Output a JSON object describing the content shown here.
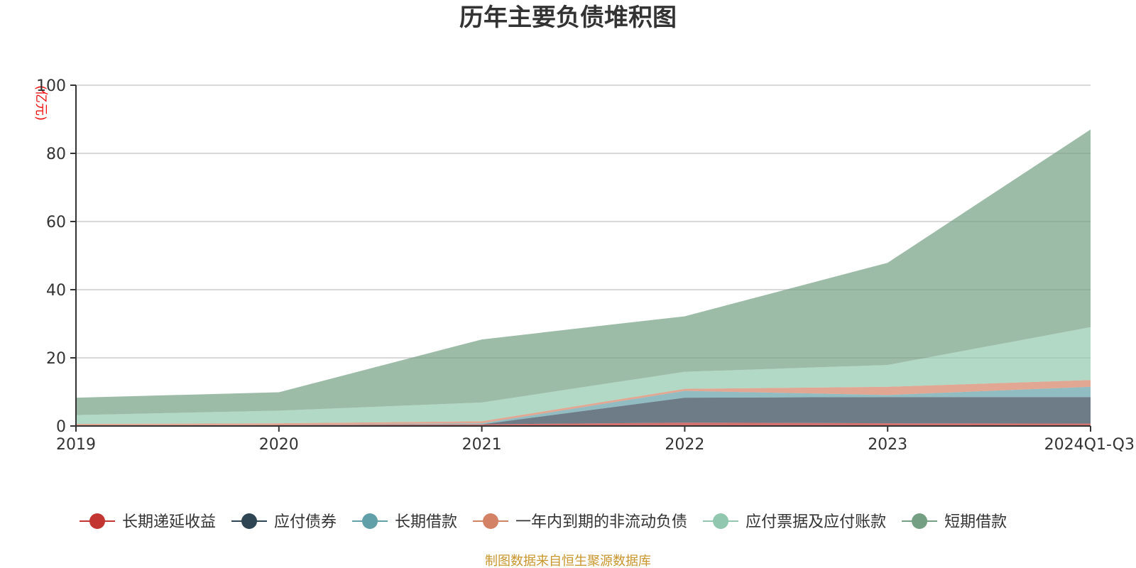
{
  "chart_data": {
    "type": "area",
    "stacked": true,
    "title": "历年主要负债堆积图",
    "unit_label": "(亿元)",
    "categories": [
      "2019",
      "2020",
      "2021",
      "2022",
      "2023",
      "2024Q1-Q3"
    ],
    "ylim": [
      0,
      100
    ],
    "y_ticks": [
      "0",
      "20",
      "40",
      "60",
      "80",
      "100"
    ],
    "grid": true,
    "legend_position": "bottom",
    "series": [
      {
        "name": "长期递延收益",
        "color": "#c23531",
        "values": [
          0.2,
          0.3,
          0.5,
          1.0,
          0.8,
          0.7
        ]
      },
      {
        "name": "应付债券",
        "color": "#2f4554",
        "values": [
          0,
          0,
          0,
          7.3,
          7.7,
          7.8
        ]
      },
      {
        "name": "长期借款",
        "color": "#61a0a8",
        "values": [
          0,
          0,
          0.3,
          2.0,
          0.6,
          3.0
        ]
      },
      {
        "name": "一年内到期的非流动负债",
        "color": "#d48265",
        "values": [
          0.4,
          0.5,
          0.6,
          0.6,
          2.4,
          2.0
        ]
      },
      {
        "name": "应付票据及应付账款",
        "color": "#91c7ae",
        "values": [
          2.6,
          3.7,
          5.5,
          5.0,
          6.4,
          15.5
        ]
      },
      {
        "name": "短期借款",
        "color": "#749f83",
        "values": [
          5.1,
          5.4,
          18.5,
          16.3,
          30.0,
          58.0
        ]
      }
    ],
    "source": "制图数据来自恒生聚源数据库"
  }
}
